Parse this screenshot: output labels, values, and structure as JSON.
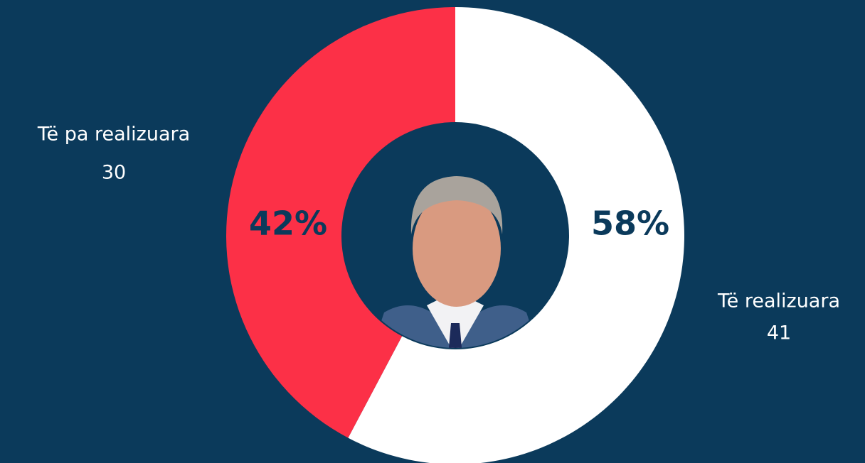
{
  "chart_data": {
    "type": "donut",
    "categories": [
      "Të realizuara",
      "Të pa realizuara"
    ],
    "values": [
      41,
      30
    ],
    "percent_labels": [
      "58%",
      "42%"
    ],
    "colors": [
      "#ffffff",
      "#fc3047"
    ]
  }
}
